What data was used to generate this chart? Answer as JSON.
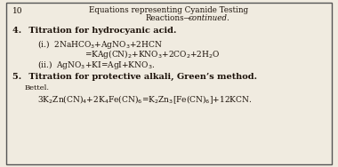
{
  "background_color": "#f0ebe0",
  "border_color": "#555555",
  "text_color": "#1a1008",
  "page_number": "10",
  "header_line1": "Equations representing Cyanide Testing",
  "header_line2": "Reactions—",
  "header_italic": "continued.",
  "section4_title": "4.  Titration for hydrocyanic acid.",
  "eq4i_line1": "(i.)  2NaHCO$_3$+AgNO$_3$+2HCN",
  "eq4i_line2": "=KAg(CN)$_2$+KNO$_3$+2CO$_2$+2H$_2$O",
  "eq4ii": "(ii.)  AgNO$_3$+KI=AgI+KNO$_3$.",
  "section5_title": "5.  Titration for protective alkali, Green’s method.",
  "bettel": "Bettel.",
  "eq5": "3K$_2$Zn(CN)$_4$+2K$_4$Fe(CN)$_6$=K$_2$Zn$_3$[Fe(CN)$_6$]+12KCN."
}
